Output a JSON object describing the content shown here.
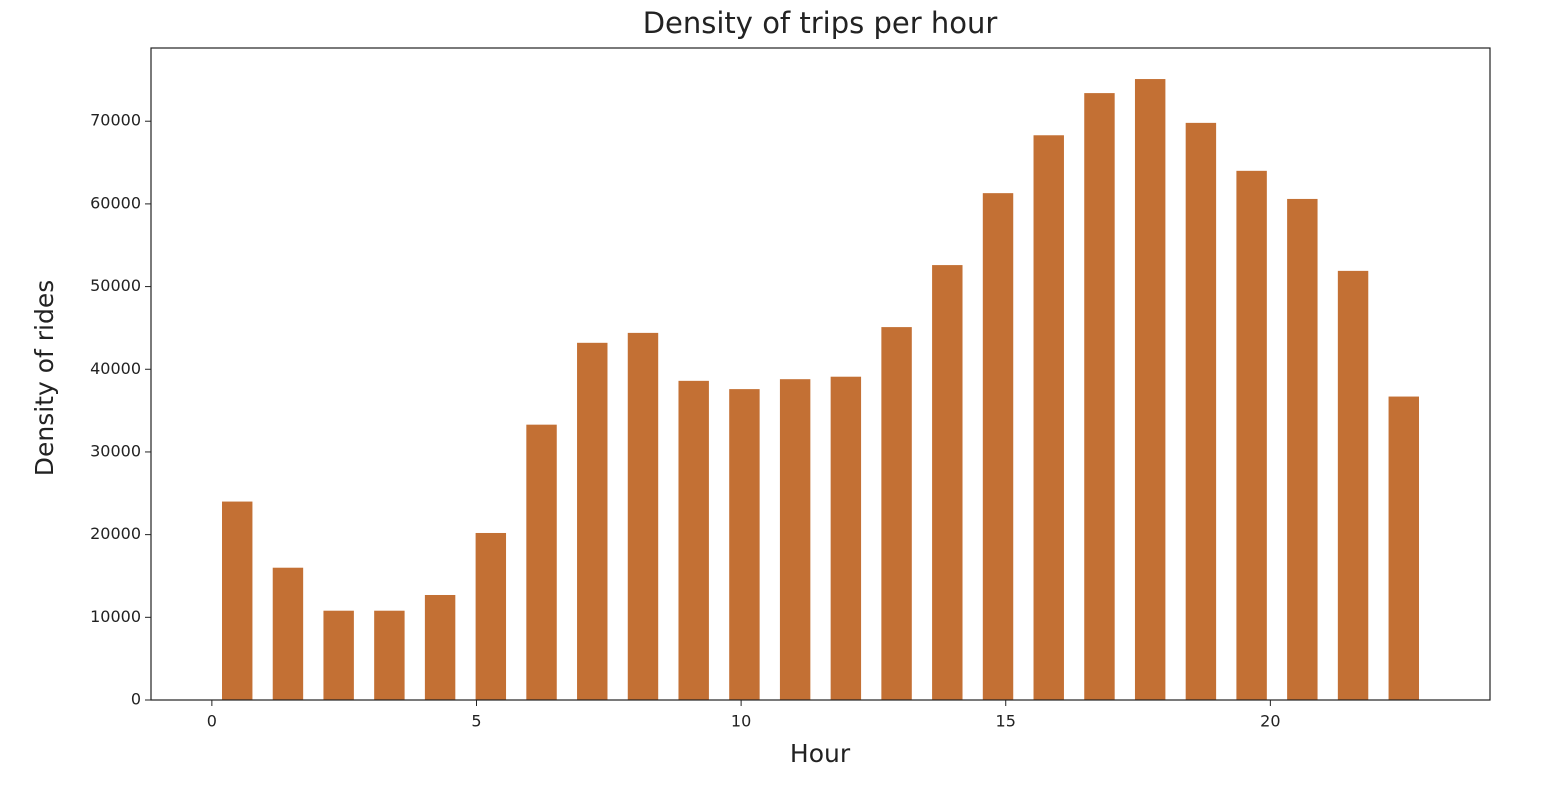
{
  "chart_data": {
    "type": "histogram",
    "title": "Density of trips per hour",
    "x_label": "Hour",
    "y_label": "Density of rides",
    "bins": [
      0,
      0.9583,
      1.9167,
      2.875,
      3.8333,
      4.7917,
      5.75,
      6.7083,
      7.6667,
      8.625,
      9.5833,
      10.5417,
      11.5,
      12.4583,
      13.4167,
      14.375,
      15.3333,
      16.2917,
      17.25,
      18.2083,
      19.1667,
      20.125,
      21.0833,
      22.0417,
      23
    ],
    "values": [
      24000,
      16000,
      10800,
      10800,
      12700,
      20200,
      33300,
      43200,
      44400,
      38600,
      37600,
      38800,
      39100,
      45100,
      52600,
      61300,
      68300,
      73400,
      75100,
      69800,
      64000,
      60600,
      51900,
      36700
    ],
    "color": "#c37034",
    "rwidth": 0.6,
    "xlim": [
      -1.15,
      24.15
    ],
    "xticks": [
      0,
      5,
      10,
      15,
      20
    ],
    "ylim": [
      0,
      78855
    ],
    "yticks": [
      0,
      10000,
      20000,
      30000,
      40000,
      50000,
      60000,
      70000
    ]
  }
}
